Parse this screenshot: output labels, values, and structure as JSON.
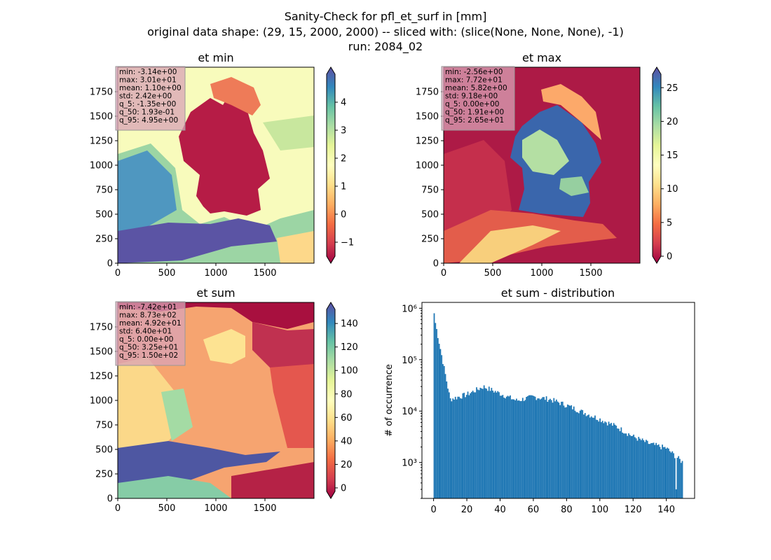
{
  "figure": {
    "title_lines": [
      "Sanity-Check for pfl_et_surf in [mm]",
      "original data shape: (29, 15, 2000, 2000) -- sliced with: (slice(None, None, None), -1)",
      "run: 2084_02"
    ]
  },
  "colors": {
    "cmap": [
      "#9e0142",
      "#d53e4f",
      "#f46d43",
      "#fdae61",
      "#fee08b",
      "#ffffbf",
      "#e6f598",
      "#abdda4",
      "#66c2a5",
      "#3288bd",
      "#5e4fa2"
    ],
    "hist_bar": "#1f77b4",
    "stats_box": "#d9a3b7"
  },
  "chart_data": [
    {
      "type": "heatmap",
      "title": "et min",
      "xlim": [
        0,
        2000
      ],
      "ylim": [
        0,
        2000
      ],
      "xticks": [
        "0",
        "500",
        "1000",
        "1500"
      ],
      "yticks": [
        "0",
        "250",
        "500",
        "750",
        "1000",
        "1250",
        "1500",
        "1750"
      ],
      "colorbar": {
        "range": [
          -1.5,
          5.0
        ],
        "ticks": [
          "−1",
          "0",
          "1",
          "2",
          "3",
          "4"
        ],
        "extend": "both"
      },
      "stats": [
        "min: -3.14e+00",
        "max: 3.01e+01",
        "mean: 1.10e+00",
        "std: 2.42e+00",
        "q_5: -1.35e+00",
        "q_50: 1.93e-01",
        "q_95: 4.95e+00"
      ]
    },
    {
      "type": "heatmap",
      "title": "et max",
      "xlim": [
        0,
        2000
      ],
      "ylim": [
        0,
        2000
      ],
      "xticks": [
        "0",
        "500",
        "1000",
        "1500"
      ],
      "yticks": [
        "0",
        "250",
        "500",
        "750",
        "1000",
        "1250",
        "1500",
        "1750"
      ],
      "colorbar": {
        "range": [
          0,
          27
        ],
        "ticks": [
          "0",
          "5",
          "10",
          "15",
          "20",
          "25"
        ],
        "extend": "both"
      },
      "stats": [
        "min: -2.56e+00",
        "max: 7.72e+01",
        "mean: 5.82e+00",
        "std: 9.18e+00",
        "q_5: 0.00e+00",
        "q_50: 1.91e+00",
        "q_95: 2.65e+01"
      ]
    },
    {
      "type": "heatmap",
      "title": "et sum",
      "xlim": [
        0,
        2000
      ],
      "ylim": [
        0,
        2000
      ],
      "xticks": [
        "0",
        "500",
        "1000",
        "1500"
      ],
      "yticks": [
        "0",
        "250",
        "500",
        "750",
        "1000",
        "1250",
        "1500",
        "1750"
      ],
      "colorbar": {
        "range": [
          -3,
          152
        ],
        "ticks": [
          "0",
          "20",
          "40",
          "60",
          "80",
          "100",
          "120",
          "140"
        ],
        "extend": "both"
      },
      "stats": [
        "min: -7.42e+01",
        "max: 8.73e+02",
        "mean: 4.92e+01",
        "std: 6.40e+01",
        "q_5: 0.00e+00",
        "q_50: 3.25e+01",
        "q_95: 1.50e+02"
      ]
    },
    {
      "type": "bar",
      "title": "et sum - distribution",
      "ylabel": "# of occurrence",
      "yscale": "log",
      "xlim": [
        -7,
        157
      ],
      "ylim": [
        200,
        1300000
      ],
      "xticks": [
        "0",
        "20",
        "40",
        "60",
        "80",
        "100",
        "120",
        "140"
      ],
      "yticks": [
        "10³",
        "10⁴",
        "10⁵",
        "10⁶"
      ],
      "bin_width": 0.75,
      "bins_x": [
        0,
        10,
        20,
        30,
        40,
        50,
        60,
        70,
        80,
        90,
        100,
        110,
        120,
        130,
        140,
        150
      ],
      "bins_y": [
        800000,
        17000,
        21000,
        30000,
        22000,
        16000,
        19000,
        17000,
        13000,
        9500,
        7000,
        5000,
        3200,
        2300,
        1900,
        1000
      ]
    }
  ]
}
